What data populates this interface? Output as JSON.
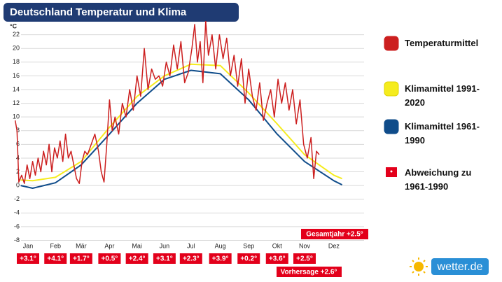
{
  "chart_data": {
    "type": "line",
    "title": "Deutschland Temperatur und Klima",
    "y_unit": "°C",
    "xlim": [
      1,
      366
    ],
    "ylim": [
      -8,
      24
    ],
    "xticks": [
      {
        "value": 15,
        "label": "Jan"
      },
      {
        "value": 45,
        "label": "Feb"
      },
      {
        "value": 73,
        "label": "Mär"
      },
      {
        "value": 104,
        "label": "Apr"
      },
      {
        "value": 134,
        "label": "Mai"
      },
      {
        "value": 164,
        "label": "Jun"
      },
      {
        "value": 193,
        "label": "Jul"
      },
      {
        "value": 225,
        "label": "Aug"
      },
      {
        "value": 256,
        "label": "Sep"
      },
      {
        "value": 287,
        "label": "Okt"
      },
      {
        "value": 317,
        "label": "Nov"
      },
      {
        "value": 349,
        "label": "Dez"
      }
    ],
    "yticks": [
      -8,
      -6,
      -4,
      -2,
      0,
      2,
      4,
      6,
      8,
      10,
      12,
      14,
      16,
      18,
      20,
      22
    ],
    "grid": true,
    "series": [
      {
        "name": "Temperaturmittel",
        "color": "#cc1f1f",
        "x": [
          1,
          3,
          5,
          8,
          11,
          14,
          17,
          20,
          23,
          26,
          29,
          32,
          35,
          38,
          41,
          44,
          47,
          50,
          53,
          56,
          59,
          62,
          65,
          68,
          71,
          74,
          77,
          80,
          84,
          88,
          92,
          95,
          98,
          101,
          104,
          107,
          110,
          114,
          118,
          122,
          126,
          130,
          134,
          138,
          142,
          146,
          150,
          154,
          158,
          162,
          166,
          170,
          174,
          178,
          182,
          186,
          190,
          194,
          197,
          200,
          203,
          206,
          209,
          212,
          216,
          220,
          224,
          228,
          232,
          236,
          240,
          244,
          248,
          252,
          256,
          260,
          264,
          268,
          272,
          276,
          280,
          284,
          288,
          292,
          296,
          300,
          304,
          308,
          312,
          316,
          320,
          324,
          327,
          330,
          333
        ],
        "values": [
          9.5,
          8,
          0.5,
          1.5,
          0.3,
          3,
          1,
          3.5,
          1.5,
          4,
          2,
          5,
          3,
          6,
          2,
          5.5,
          4,
          6.5,
          3.5,
          7.5,
          4,
          5,
          3,
          1,
          0.3,
          3.5,
          5,
          4.5,
          6,
          7.5,
          5,
          2,
          0.5,
          6,
          12.5,
          8,
          10,
          7.5,
          12,
          10,
          14,
          11,
          16,
          13,
          20,
          14,
          17,
          15.5,
          16,
          14.5,
          18,
          16,
          20.5,
          17,
          21,
          15,
          16.5,
          20,
          23.5,
          18,
          21,
          15,
          24,
          19,
          22,
          17,
          22,
          18.5,
          21.5,
          16,
          19,
          14.5,
          18.5,
          12,
          17,
          13,
          11,
          15,
          9.5,
          12,
          14,
          10,
          15.5,
          12,
          15,
          11,
          14,
          9,
          12.5,
          6,
          4,
          7,
          1,
          5,
          4.5
        ]
      },
      {
        "name": "Klimamittel 1991-2020",
        "color": "#f5ec1e",
        "x": [
          7,
          20,
          45,
          73,
          104,
          134,
          164,
          193,
          225,
          256,
          287,
          317,
          349,
          358
        ],
        "values": [
          0.8,
          0.7,
          1.2,
          3.5,
          8.5,
          13,
          16,
          17.7,
          17.5,
          13.5,
          9,
          4.5,
          1.5,
          1
        ]
      },
      {
        "name": "Klimamittel 1961-1990",
        "color": "#0f4c8a",
        "x": [
          7,
          20,
          45,
          73,
          104,
          134,
          164,
          193,
          225,
          256,
          287,
          317,
          349,
          358
        ],
        "values": [
          0,
          -0.4,
          0.4,
          3,
          7.5,
          12,
          15.5,
          16.8,
          16.3,
          12.5,
          7.5,
          3.5,
          0.7,
          0.1
        ]
      }
    ],
    "deviations": {
      "name": "Abweichung zu 1961-1990",
      "color": "#e3001b",
      "values": [
        3.1,
        4.1,
        1.7,
        0.5,
        2.4,
        3.1,
        2.3,
        3.9,
        0.2,
        3.6,
        2.5
      ],
      "value_labels": [
        "+3.1°",
        "+4.1°",
        "+1.7°",
        "+0.5°",
        "+2.4°",
        "+3.1°",
        "+2.3°",
        "+3.9°",
        "+0.2°",
        "+3.6°",
        "+2.5°"
      ]
    },
    "annotations": [
      "Gesamtjahr +2.5°",
      "Vorhersage +2.6°"
    ],
    "logo": "wetter.de"
  }
}
